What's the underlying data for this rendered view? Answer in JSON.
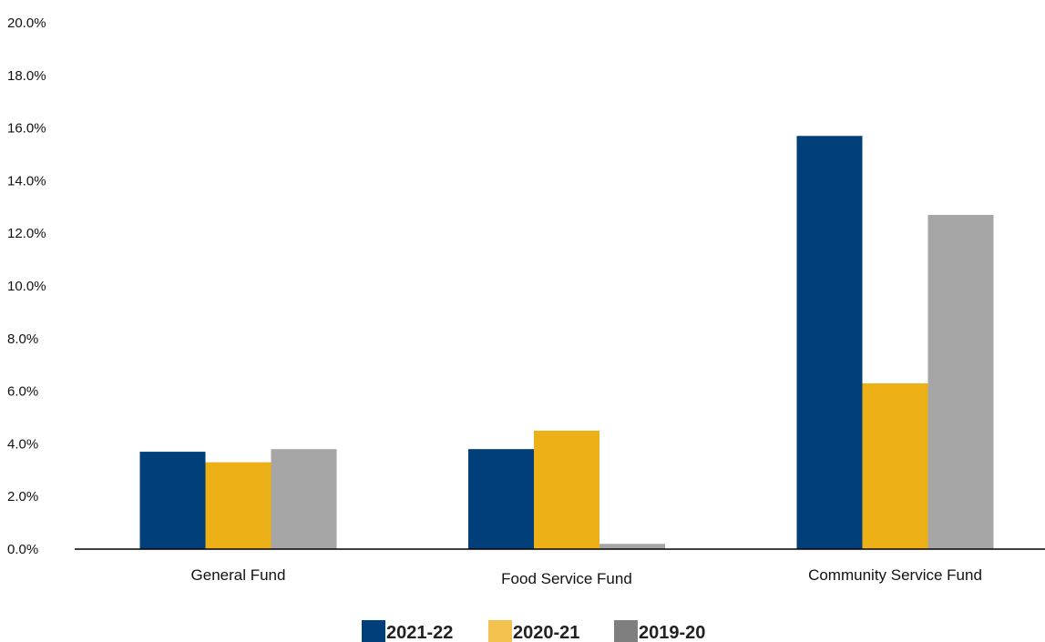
{
  "chart_data": {
    "type": "bar",
    "categories": [
      "General Fund",
      "Food Service Fund",
      "Community Service Fund"
    ],
    "series": [
      {
        "name": "2021-22",
        "color": "#003f7a",
        "values": [
          3.7,
          3.8,
          15.7
        ]
      },
      {
        "name": "2020-21",
        "color": "#edb016",
        "values": [
          3.3,
          4.5,
          6.3
        ]
      },
      {
        "name": "2019-20",
        "color": "#a6a6a6",
        "values": [
          3.8,
          0.2,
          12.7
        ]
      }
    ],
    "ylim": [
      0,
      20
    ],
    "yticks": [
      "0.0%",
      "2.0%",
      "4.0%",
      "6.0%",
      "8.0%",
      "10.0%",
      "12.0%",
      "14.0%",
      "16.0%",
      "18.0%",
      "20.0%"
    ],
    "ytick_values": [
      0,
      2,
      4,
      6,
      8,
      10,
      12,
      14,
      16,
      18,
      20
    ],
    "grid": false,
    "legend_position": "bottom-center",
    "legend_swatch_colors": [
      "#003f7a",
      "#f2c14e",
      "#7f7f7f"
    ]
  }
}
